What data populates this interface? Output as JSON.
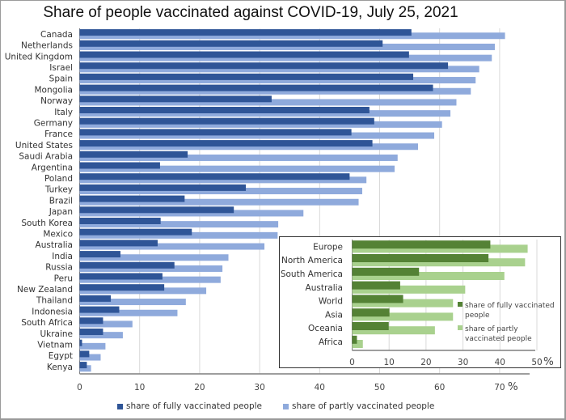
{
  "chart_data": [
    {
      "type": "bar",
      "orientation": "horizontal",
      "title": "Share of people vaccinated against COVID-19, July 25, 2021",
      "xlabel": "",
      "ylabel": "",
      "x_unit_label": "%",
      "xlim": [
        0,
        75
      ],
      "xticks": [
        0,
        10,
        20,
        30,
        40,
        50,
        60,
        70
      ],
      "grid": true,
      "legend_position": "bottom",
      "categories": [
        "Canada",
        "Netherlands",
        "United Kingdom",
        "Israel",
        "Spain",
        "Mongolia",
        "Norway",
        "Italy",
        "Germany",
        "France",
        "United States",
        "Saudi Arabia",
        "Argentina",
        "Poland",
        "Turkey",
        "Brazil",
        "Japan",
        "South Korea",
        "Mexico",
        "Australia",
        "India",
        "Russia",
        "Peru",
        "New Zealand",
        "Thailand",
        "Indonesia",
        "South Africa",
        "Ukraine",
        "Vietnam",
        "Egypt",
        "Kenya"
      ],
      "series": [
        {
          "name": "share of partly vaccinated people",
          "color": "#8faadc",
          "values": [
            70.9,
            69.2,
            68.7,
            66.6,
            66.0,
            65.2,
            62.8,
            61.8,
            60.4,
            59.1,
            56.4,
            53.0,
            52.5,
            47.8,
            47.1,
            46.5,
            37.3,
            33.1,
            33.0,
            30.8,
            24.8,
            23.8,
            23.5,
            21.1,
            17.7,
            16.3,
            8.8,
            7.2,
            4.3,
            3.5,
            1.9
          ]
        },
        {
          "name": "share of fully vaccinated people",
          "color": "#2f5597",
          "values": [
            55.3,
            50.5,
            54.9,
            61.4,
            55.6,
            58.9,
            32.0,
            48.3,
            49.1,
            45.3,
            48.8,
            18.0,
            13.4,
            45.0,
            27.7,
            17.5,
            25.7,
            13.5,
            18.7,
            13.0,
            6.8,
            15.8,
            13.8,
            14.1,
            5.2,
            6.6,
            3.9,
            3.9,
            0.4,
            1.6,
            1.2
          ]
        }
      ]
    },
    {
      "type": "bar",
      "orientation": "horizontal",
      "title": "",
      "xlabel": "",
      "ylabel": "",
      "x_unit_label": "%",
      "xlim": [
        0,
        50
      ],
      "xticks": [
        0,
        10,
        20,
        30,
        40,
        50
      ],
      "grid": true,
      "legend_position": "right",
      "categories": [
        "Europe",
        "North America",
        "South America",
        "Australia",
        "World",
        "Asia",
        "Oceania",
        "Africa"
      ],
      "series": [
        {
          "name": "share of partly vaccinated people",
          "color": "#a9d18e",
          "values": [
            47.5,
            46.8,
            41.2,
            30.6,
            27.3,
            27.3,
            22.4,
            2.9
          ]
        },
        {
          "name": "share of fully vaccinated people",
          "color": "#548235",
          "values": [
            37.4,
            36.9,
            18.1,
            13.0,
            13.8,
            10.1,
            9.9,
            1.3
          ]
        }
      ]
    }
  ],
  "legend": {
    "fully": "share of fully vaccinated people",
    "partly": "share of partly vaccinated people"
  },
  "inset_legend": {
    "fully_line1": "share of fully vaccinated",
    "fully_line2": "people",
    "partly_line1": "share of partly",
    "partly_line2": "vaccinated people"
  },
  "colors": {
    "main_fully": "#2f5597",
    "main_partly": "#8faadc",
    "inset_fully": "#548235",
    "inset_partly": "#a9d18e"
  }
}
